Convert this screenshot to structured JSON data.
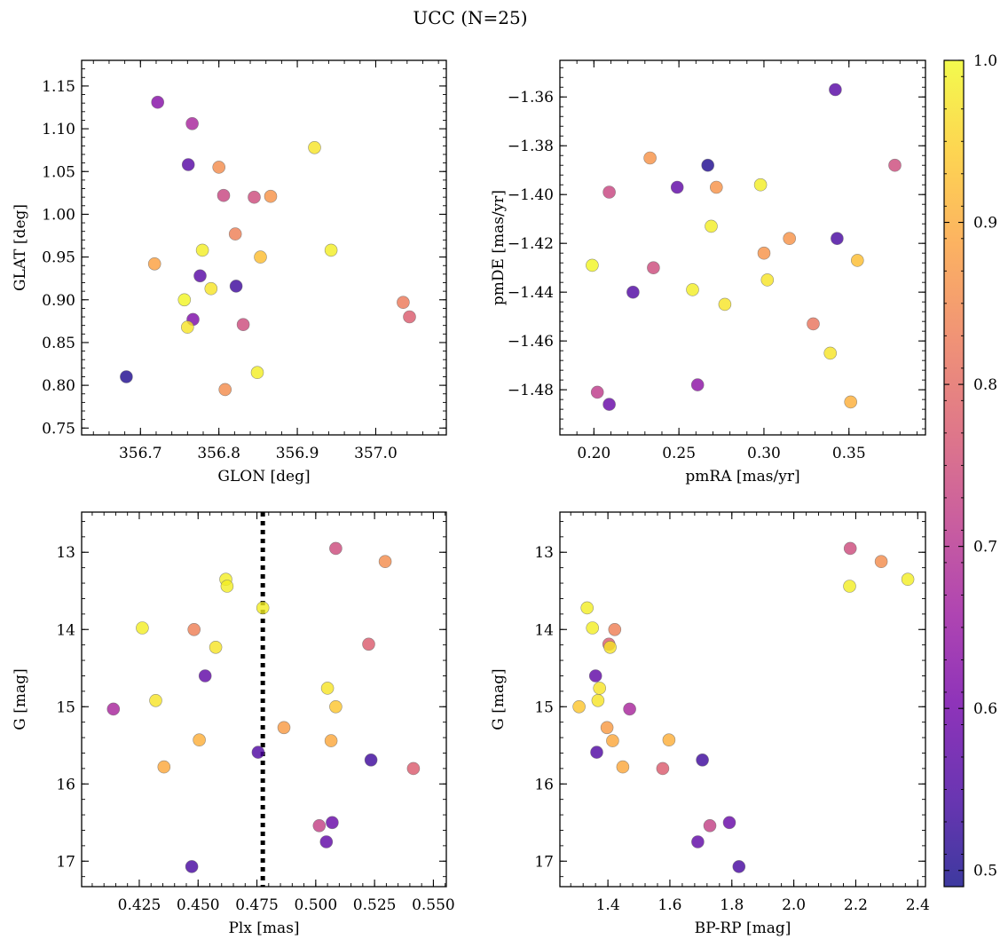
{
  "title": "UCC (N=25)",
  "colormap": {
    "name": "plasma",
    "range": [
      0.49,
      1.0
    ],
    "ticks": [
      0.5,
      0.6,
      0.7,
      0.8,
      0.9,
      1.0
    ],
    "tick_labels": [
      "0.5",
      "0.6",
      "0.7",
      "0.8",
      "0.9",
      "1.0"
    ],
    "stops": [
      "#0d0887",
      "#46039f",
      "#7201a8",
      "#9c179e",
      "#bd3786",
      "#d8576b",
      "#ed7953",
      "#fb9f3a",
      "#fdca26",
      "#f0f921"
    ],
    "alpha": 0.8
  },
  "vline": {
    "x": 0.4775,
    "style": "dotted",
    "color": "#000000"
  },
  "chart_data": [
    {
      "type": "scatter",
      "xlabel": "GLON [deg]",
      "ylabel": "GLAT [deg]",
      "xlim": [
        356.625,
        357.09
      ],
      "ylim": [
        0.742,
        1.18
      ],
      "xticks": [
        356.7,
        356.8,
        356.9,
        357.0
      ],
      "xtick_labels": [
        "356.7",
        "356.8",
        "356.9",
        "357.0"
      ],
      "yticks": [
        0.75,
        0.8,
        0.85,
        0.9,
        0.95,
        1.0,
        1.05,
        1.1,
        1.15
      ],
      "ytick_labels": [
        "0.75",
        "0.80",
        "0.85",
        "0.90",
        "0.95",
        "1.00",
        "1.05",
        "1.10",
        "1.15"
      ],
      "y_inverted": false,
      "x": [
        356.722,
        356.766,
        356.761,
        356.8,
        356.806,
        356.845,
        356.866,
        356.922,
        356.821,
        356.718,
        356.779,
        356.853,
        356.943,
        356.756,
        356.79,
        356.776,
        356.822,
        356.767,
        356.76,
        356.831,
        357.035,
        357.043,
        356.682,
        356.849,
        356.808
      ],
      "y": [
        1.131,
        1.106,
        1.058,
        1.055,
        1.022,
        1.02,
        1.021,
        1.078,
        0.977,
        0.942,
        0.958,
        0.95,
        0.958,
        0.9,
        0.913,
        0.928,
        0.916,
        0.877,
        0.868,
        0.871,
        0.897,
        0.88,
        0.81,
        0.815,
        0.795
      ],
      "c": [
        0.625,
        0.675,
        0.565,
        0.855,
        0.735,
        0.745,
        0.865,
        0.975,
        0.835,
        0.885,
        0.985,
        0.925,
        0.985,
        0.995,
        0.975,
        0.565,
        0.535,
        0.615,
        0.975,
        0.745,
        0.825,
        0.775,
        0.505,
        0.985,
        0.855
      ]
    },
    {
      "type": "scatter",
      "xlabel": "pmRA [mas/yr]",
      "ylabel": "pmDE [mas/yr]",
      "xlim": [
        0.18,
        0.395
      ],
      "ylim": [
        -1.4985,
        -1.345
      ],
      "xticks": [
        0.2,
        0.25,
        0.3,
        0.35
      ],
      "xtick_labels": [
        "0.20",
        "0.25",
        "0.30",
        "0.35"
      ],
      "yticks": [
        -1.48,
        -1.46,
        -1.44,
        -1.42,
        -1.4,
        -1.38,
        -1.36
      ],
      "ytick_labels": [
        "−1.48",
        "−1.46",
        "−1.44",
        "−1.42",
        "−1.40",
        "−1.38",
        "−1.36"
      ],
      "y_inverted": false,
      "x": [
        0.342,
        0.233,
        0.267,
        0.377,
        0.249,
        0.272,
        0.298,
        0.209,
        0.269,
        0.315,
        0.3,
        0.343,
        0.355,
        0.302,
        0.199,
        0.235,
        0.223,
        0.258,
        0.277,
        0.329,
        0.339,
        0.202,
        0.261,
        0.351,
        0.209
      ],
      "y": [
        -1.357,
        -1.385,
        -1.388,
        -1.388,
        -1.397,
        -1.397,
        -1.396,
        -1.399,
        -1.413,
        -1.418,
        -1.424,
        -1.418,
        -1.427,
        -1.435,
        -1.429,
        -1.43,
        -1.44,
        -1.439,
        -1.445,
        -1.453,
        -1.465,
        -1.481,
        -1.478,
        -1.485,
        -1.486
      ],
      "c": [
        0.565,
        0.865,
        0.505,
        0.745,
        0.575,
        0.865,
        0.985,
        0.735,
        0.985,
        0.865,
        0.865,
        0.545,
        0.925,
        0.975,
        0.995,
        0.745,
        0.555,
        0.985,
        0.975,
        0.815,
        0.975,
        0.715,
        0.635,
        0.905,
        0.585
      ]
    },
    {
      "type": "scatter",
      "xlabel": "Plx [mas]",
      "ylabel": "G [mag]",
      "xlim": [
        0.4005,
        0.5555
      ],
      "ylim": [
        17.33,
        12.48
      ],
      "xticks": [
        0.425,
        0.45,
        0.475,
        0.5,
        0.525,
        0.55
      ],
      "xtick_labels": [
        "0.425",
        "0.450",
        "0.475",
        "0.500",
        "0.525",
        "0.550"
      ],
      "yticks": [
        13,
        14,
        15,
        16,
        17
      ],
      "ytick_labels": [
        "13",
        "14",
        "15",
        "16",
        "17"
      ],
      "y_inverted": true,
      "x": [
        0.5085,
        0.5295,
        0.4618,
        0.4623,
        0.4775,
        0.4263,
        0.4483,
        0.4575,
        0.5225,
        0.453,
        0.505,
        0.414,
        0.432,
        0.5085,
        0.4865,
        0.4505,
        0.5065,
        0.4355,
        0.4755,
        0.5235,
        0.5415,
        0.507,
        0.5015,
        0.5045,
        0.4473
      ],
      "y": [
        12.95,
        13.12,
        13.35,
        13.44,
        13.72,
        13.98,
        14.0,
        14.23,
        14.19,
        14.6,
        14.76,
        15.03,
        14.92,
        15.0,
        15.27,
        15.43,
        15.44,
        15.78,
        15.59,
        15.69,
        15.8,
        16.5,
        16.54,
        16.75,
        17.07
      ],
      "c": [
        0.745,
        0.855,
        0.985,
        0.985,
        0.985,
        0.985,
        0.835,
        0.975,
        0.775,
        0.575,
        0.975,
        0.675,
        0.975,
        0.935,
        0.875,
        0.905,
        0.895,
        0.895,
        0.555,
        0.535,
        0.775,
        0.585,
        0.725,
        0.575,
        0.545
      ]
    },
    {
      "type": "scatter",
      "xlabel": "BP-RP [mag]",
      "ylabel": "G [mag]",
      "xlim": [
        1.245,
        2.425
      ],
      "ylim": [
        17.33,
        12.48
      ],
      "xticks": [
        1.4,
        1.6,
        1.8,
        2.0,
        2.2,
        2.4
      ],
      "xtick_labels": [
        "1.4",
        "1.6",
        "1.8",
        "2.0",
        "2.2",
        "2.4"
      ],
      "yticks": [
        13,
        14,
        15,
        16,
        17
      ],
      "ytick_labels": [
        "13",
        "14",
        "15",
        "16",
        "17"
      ],
      "y_inverted": true,
      "x": [
        2.182,
        2.282,
        2.368,
        2.18,
        1.333,
        1.35,
        1.422,
        1.403,
        1.407,
        1.36,
        1.373,
        1.307,
        1.368,
        1.47,
        1.397,
        1.415,
        1.597,
        1.364,
        1.705,
        1.448,
        1.577,
        1.792,
        1.729,
        1.69,
        1.823
      ],
      "y": [
        12.95,
        13.12,
        13.35,
        13.44,
        13.72,
        13.98,
        14.0,
        14.19,
        14.23,
        14.6,
        14.76,
        15.0,
        14.92,
        15.03,
        15.27,
        15.44,
        15.43,
        15.59,
        15.69,
        15.78,
        15.8,
        16.5,
        16.54,
        16.75,
        17.07
      ],
      "c": [
        0.745,
        0.855,
        0.985,
        0.985,
        0.985,
        0.985,
        0.835,
        0.775,
        0.975,
        0.575,
        0.975,
        0.935,
        0.975,
        0.675,
        0.875,
        0.895,
        0.905,
        0.555,
        0.535,
        0.895,
        0.775,
        0.585,
        0.725,
        0.575,
        0.545
      ]
    }
  ]
}
